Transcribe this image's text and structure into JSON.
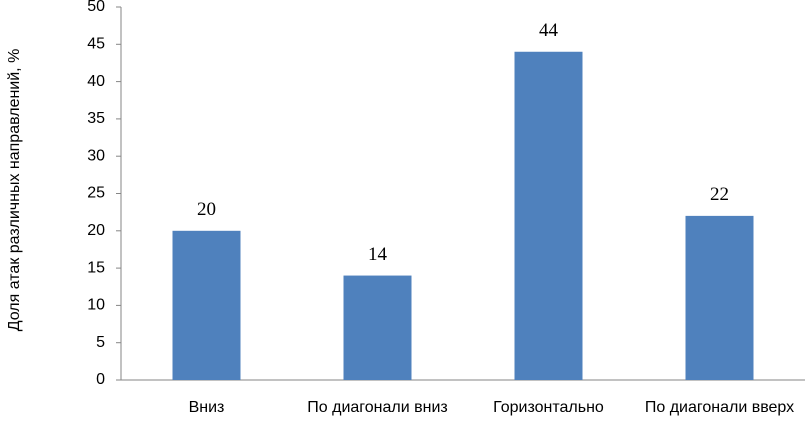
{
  "chart_data": {
    "type": "bar",
    "y_axis_label": "Доля атак различных направлений, %",
    "categories": [
      "Вниз",
      "По диагонали вниз",
      "Горизонтально",
      "По диагонали вверх"
    ],
    "values": [
      20,
      14,
      44,
      22
    ],
    "color": "#4f81bd",
    "ylim": [
      0,
      50
    ],
    "yticks": [
      0,
      5,
      10,
      15,
      20,
      25,
      30,
      35,
      40,
      45,
      50
    ],
    "grid": false
  }
}
